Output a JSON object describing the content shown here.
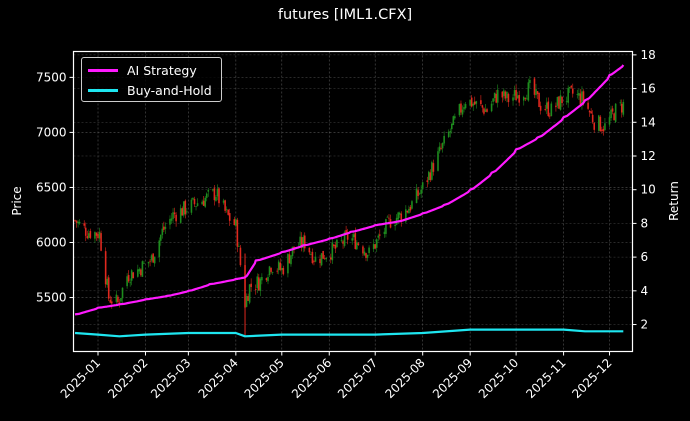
{
  "chart_data": {
    "type": "line",
    "title": "futures [IML1.CFX]",
    "xlabel": "",
    "ylabel_left": "Price",
    "ylabel_right": "Return",
    "x_ticks": [
      "2025-01",
      "2025-02",
      "2025-03",
      "2025-04",
      "2025-05",
      "2025-06",
      "2025-07",
      "2025-08",
      "2025-09",
      "2025-10",
      "2025-11",
      "2025-12"
    ],
    "y_left_ticks": [
      5500,
      6000,
      6500,
      7000,
      7500
    ],
    "y_left_range": [
      5010,
      7735
    ],
    "y_right_ticks": [
      2,
      4,
      6,
      8,
      10,
      12,
      14,
      16,
      18
    ],
    "y_right_range": [
      0.4,
      18.2
    ],
    "grid": true,
    "legend_position": "upper left",
    "background": "#000000",
    "candles": {
      "description": "Daily OHLC price bars (red = down, green = up), approximate closes sampled",
      "up_color": "#1e8c1e",
      "down_color": "#e0281e",
      "dates": [
        "2024-12-17",
        "2024-12-25",
        "2025-01-02",
        "2025-01-08",
        "2025-01-14",
        "2025-01-20",
        "2025-01-27",
        "2025-02-05",
        "2025-02-12",
        "2025-02-19",
        "2025-02-26",
        "2025-03-05",
        "2025-03-12",
        "2025-03-19",
        "2025-03-26",
        "2025-04-01",
        "2025-04-07",
        "2025-04-10",
        "2025-04-17",
        "2025-04-24",
        "2025-05-01",
        "2025-05-09",
        "2025-05-16",
        "2025-05-23",
        "2025-05-30",
        "2025-06-06",
        "2025-06-13",
        "2025-06-20",
        "2025-06-27",
        "2025-07-04",
        "2025-07-11",
        "2025-07-18",
        "2025-07-25",
        "2025-08-01",
        "2025-08-08",
        "2025-08-15",
        "2025-08-22",
        "2025-08-29",
        "2025-09-05",
        "2025-09-12",
        "2025-09-19",
        "2025-09-26",
        "2025-10-03",
        "2025-10-10",
        "2025-10-17",
        "2025-10-24",
        "2025-10-31",
        "2025-11-07",
        "2025-11-14",
        "2025-11-21",
        "2025-11-28",
        "2025-12-05",
        "2025-12-10"
      ],
      "close": [
        6200,
        6100,
        6080,
        5500,
        5450,
        5700,
        5750,
        5850,
        6100,
        6250,
        6300,
        6350,
        6400,
        6450,
        6250,
        6150,
        5450,
        5600,
        5650,
        5800,
        5750,
        5950,
        6000,
        5850,
        5900,
        5950,
        6050,
        6000,
        5900,
        6050,
        6200,
        6250,
        6350,
        6500,
        6700,
        6900,
        7100,
        7300,
        7250,
        7200,
        7350,
        7300,
        7350,
        7400,
        7250,
        7200,
        7300,
        7350,
        7300,
        7100,
        7050,
        7200,
        7250
      ]
    },
    "series": [
      {
        "name": "AI Strategy",
        "axis": "right",
        "color": "#ff1aff",
        "x": [
          "2024-12-17",
          "2025-01-01",
          "2025-01-15",
          "2025-02-01",
          "2025-02-15",
          "2025-03-01",
          "2025-03-15",
          "2025-04-01",
          "2025-04-07",
          "2025-04-14",
          "2025-05-01",
          "2025-05-15",
          "2025-06-01",
          "2025-06-15",
          "2025-07-01",
          "2025-07-08",
          "2025-07-15",
          "2025-08-01",
          "2025-08-15",
          "2025-09-01",
          "2025-09-15",
          "2025-10-01",
          "2025-10-15",
          "2025-11-01",
          "2025-11-15",
          "2025-12-01",
          "2025-12-10"
        ],
        "values": [
          2.6,
          3.0,
          3.2,
          3.5,
          3.7,
          4.0,
          4.4,
          4.7,
          4.8,
          5.8,
          6.3,
          6.7,
          7.1,
          7.5,
          7.9,
          8.0,
          8.1,
          8.6,
          9.1,
          10.0,
          11.0,
          12.4,
          13.1,
          14.3,
          15.3,
          16.8,
          17.4
        ]
      },
      {
        "name": "Buy-and-Hold",
        "axis": "right",
        "color": "#1ee6f0",
        "x": [
          "2024-12-17",
          "2025-01-01",
          "2025-01-15",
          "2025-02-01",
          "2025-03-01",
          "2025-04-01",
          "2025-04-07",
          "2025-05-01",
          "2025-06-01",
          "2025-07-01",
          "2025-08-01",
          "2025-09-01",
          "2025-10-01",
          "2025-11-01",
          "2025-11-15",
          "2025-12-10"
        ],
        "values": [
          1.5,
          1.4,
          1.3,
          1.4,
          1.5,
          1.5,
          1.3,
          1.4,
          1.4,
          1.4,
          1.5,
          1.7,
          1.7,
          1.7,
          1.6,
          1.6
        ]
      }
    ]
  },
  "title": "futures [IML1.CFX]",
  "legend": {
    "items": [
      {
        "label": "AI Strategy",
        "color": "#ff1aff"
      },
      {
        "label": "Buy-and-Hold",
        "color": "#1ee6f0"
      }
    ]
  },
  "axes": {
    "left_label": "Price",
    "right_label": "Return"
  }
}
